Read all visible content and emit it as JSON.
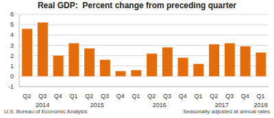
{
  "chart_data": {
    "type": "bar",
    "title": "Real GDP:  Percent change from preceding quarter",
    "categories": [
      "Q2",
      "Q3",
      "Q4",
      "Q1",
      "Q2",
      "Q3",
      "Q4",
      "Q1",
      "Q2",
      "Q3",
      "Q4",
      "Q1",
      "Q2",
      "Q3",
      "Q4",
      "Q1"
    ],
    "years": [
      "2014",
      "2014",
      "2014",
      "2015",
      "2015",
      "2015",
      "2015",
      "2016",
      "2016",
      "2016",
      "2016",
      "2017",
      "2017",
      "2017",
      "2017",
      "2018"
    ],
    "values": [
      4.6,
      5.2,
      2.0,
      3.2,
      2.7,
      1.6,
      0.5,
      0.6,
      2.2,
      2.8,
      1.8,
      1.2,
      3.1,
      3.2,
      2.9,
      2.3
    ],
    "color": "#e46c0a",
    "ylim": [
      -1,
      6
    ],
    "yticks": [
      -1,
      0,
      1,
      2,
      3,
      4,
      5,
      6
    ],
    "grid": true,
    "source": "U.S. Bureau of Economic Analysis",
    "note": "Seasonally adjusted at annual rates"
  }
}
